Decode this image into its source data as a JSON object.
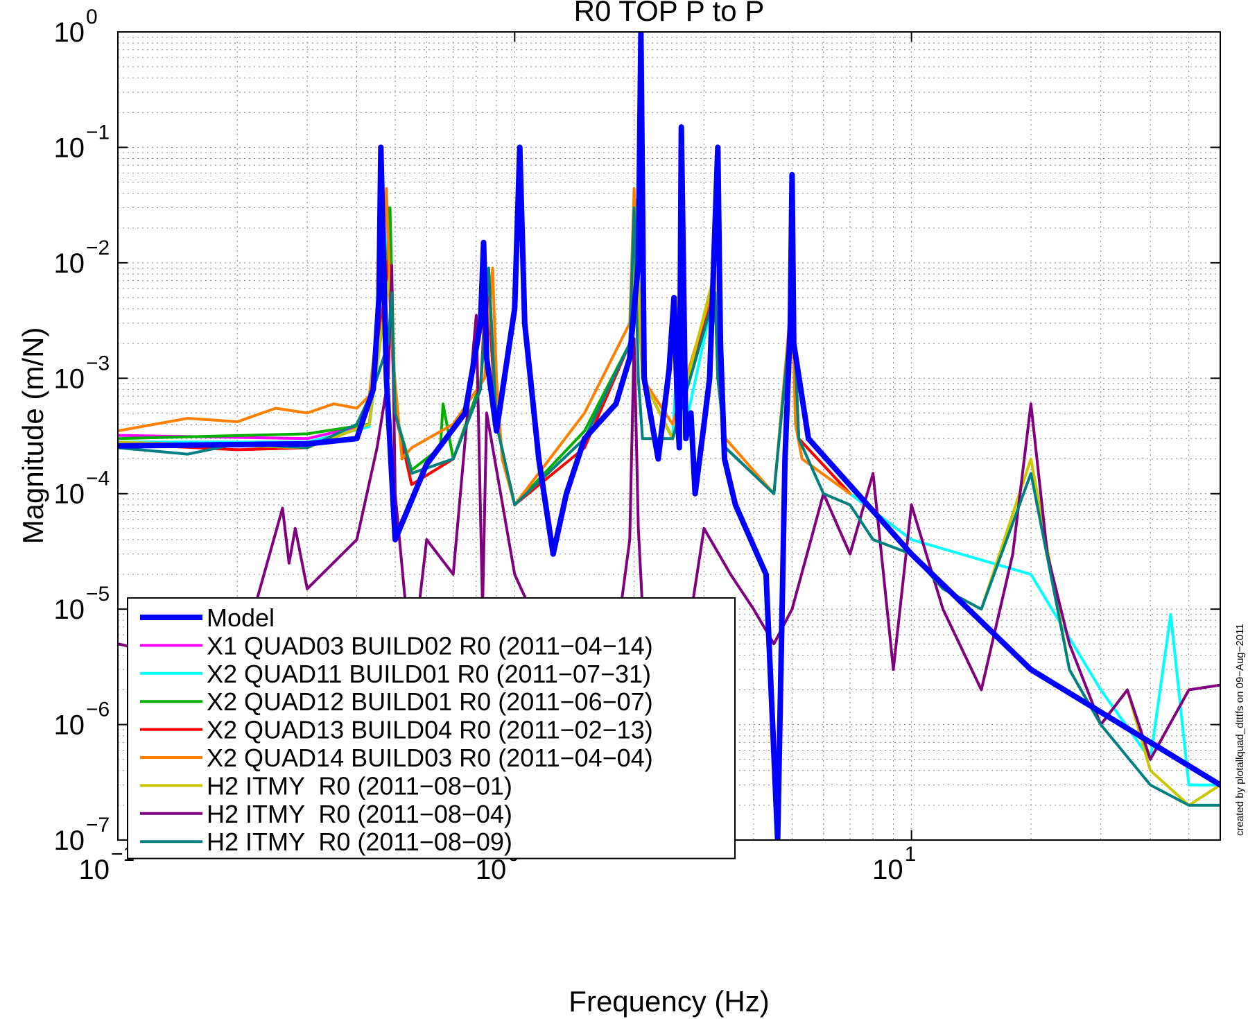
{
  "chart_data": {
    "type": "line",
    "title": "R0 TOP P to P",
    "xlabel": "Frequency (Hz)",
    "ylabel": "Magnitude (m/N)",
    "xscale": "log",
    "yscale": "log",
    "xlim": [
      0.1,
      60
    ],
    "ylim": [
      1e-07,
      1
    ],
    "grid": true,
    "legend_position": "bottom-left",
    "x_ticks": [
      {
        "value": 0.1,
        "base": "10",
        "exp": "−1"
      },
      {
        "value": 1,
        "base": "10",
        "exp": "0"
      },
      {
        "value": 10,
        "base": "10",
        "exp": "1"
      }
    ],
    "y_ticks": [
      {
        "value": 1,
        "base": "10",
        "exp": "0"
      },
      {
        "value": 0.1,
        "base": "10",
        "exp": "−1"
      },
      {
        "value": 0.01,
        "base": "10",
        "exp": "−2"
      },
      {
        "value": 0.001,
        "base": "10",
        "exp": "−3"
      },
      {
        "value": 0.0001,
        "base": "10",
        "exp": "−4"
      },
      {
        "value": 1e-05,
        "base": "10",
        "exp": "−5"
      },
      {
        "value": 1e-06,
        "base": "10",
        "exp": "−6"
      },
      {
        "value": 1e-07,
        "base": "10",
        "exp": "−7"
      }
    ],
    "annotation": "created by plotallquad_dtttfs on 09−Aug−2011",
    "series": [
      {
        "name": "Model",
        "color": "#0000ff",
        "width": 8,
        "x": [
          0.1,
          0.3,
          0.4,
          0.44,
          0.455,
          0.46,
          0.475,
          0.5,
          0.6,
          0.75,
          0.82,
          0.835,
          0.85,
          0.9,
          1.0,
          1.03,
          1.06,
          1.15,
          1.25,
          1.35,
          1.5,
          1.8,
          1.95,
          2.05,
          2.08,
          2.12,
          2.3,
          2.45,
          2.52,
          2.58,
          2.6,
          2.63,
          2.7,
          2.78,
          2.85,
          3.0,
          3.1,
          3.25,
          3.3,
          3.38,
          3.6,
          4.3,
          4.6,
          4.8,
          4.95,
          5.0,
          5.05,
          5.5,
          10,
          20,
          60
        ],
        "y": [
          0.00026,
          0.00027,
          0.0003,
          0.0008,
          0.005,
          0.1,
          0.001,
          4e-05,
          0.00018,
          0.0005,
          0.003,
          0.015,
          0.0015,
          0.00035,
          0.004,
          0.1,
          0.003,
          0.0002,
          3e-05,
          0.0001,
          0.0003,
          0.0006,
          0.0015,
          0.01,
          1.0,
          0.001,
          0.0002,
          0.0012,
          0.005,
          0.0004,
          0.00025,
          0.15,
          0.0003,
          0.0005,
          0.0001,
          0.0004,
          0.001,
          0.1,
          0.002,
          0.0002,
          8e-05,
          2e-05,
          1e-07,
          0.0002,
          0.003,
          0.058,
          0.002,
          0.0003,
          3e-05,
          3e-06,
          3e-07
        ]
      },
      {
        "name": "X1 QUAD03 BUILD02 R0 (2011−04−14)",
        "color": "#ff00ff",
        "width": 4,
        "x": [
          0.1,
          0.3,
          0.43,
          0.47,
          0.48,
          0.5,
          0.55,
          0.7,
          0.82,
          0.86,
          0.9,
          1.0,
          1.5,
          1.95,
          2.02,
          2.1,
          2.5,
          3.2,
          3.25,
          3.4,
          4.5,
          5.02,
          5.2,
          7,
          10
        ],
        "y": [
          0.00032,
          0.0003,
          0.0004,
          0.004,
          0.03,
          0.0005,
          0.00015,
          0.0002,
          0.0008,
          0.009,
          0.0004,
          8e-05,
          0.0003,
          0.002,
          0.03,
          0.001,
          0.0003,
          0.006,
          0.001,
          0.00025,
          0.0001,
          0.005,
          0.0003,
          0.0001,
          4e-05
        ]
      },
      {
        "name": "X2 QUAD11 BUILD01 R0 (2011−07−31)",
        "color": "#00ffff",
        "width": 4,
        "x": [
          0.1,
          0.3,
          0.43,
          0.47,
          0.48,
          0.5,
          0.55,
          0.7,
          0.82,
          0.86,
          0.9,
          1.0,
          1.5,
          1.95,
          2.02,
          2.1,
          2.5,
          2.62,
          2.7,
          3.2,
          3.25,
          3.4,
          4.5,
          5.02,
          5.2,
          7,
          10,
          20,
          30,
          40,
          45,
          50,
          60
        ],
        "y": [
          0.00028,
          0.00028,
          0.00038,
          0.004,
          0.025,
          0.0005,
          0.00015,
          0.0002,
          0.0008,
          0.009,
          0.0004,
          8e-05,
          0.0003,
          0.002,
          0.035,
          0.001,
          0.0003,
          0.0055,
          0.0004,
          0.006,
          0.001,
          0.00025,
          0.0001,
          0.005,
          0.0003,
          0.0001,
          4e-05,
          2e-05,
          2e-06,
          5e-07,
          9e-06,
          3e-07,
          3e-07
        ]
      },
      {
        "name": "X2 QUAD12 BUILD01 R0 (2011−06−07)",
        "color": "#00b000",
        "width": 4,
        "x": [
          0.1,
          0.3,
          0.43,
          0.47,
          0.485,
          0.5,
          0.55,
          0.65,
          0.66,
          0.7,
          0.82,
          0.86,
          0.9,
          1.0,
          1.5,
          1.95,
          2.02,
          2.1,
          2.5,
          3.2,
          3.25,
          3.4,
          4.5,
          5.02,
          5.2,
          7
        ],
        "y": [
          0.0003,
          0.00033,
          0.0004,
          0.004,
          0.03,
          0.0005,
          0.00016,
          0.00025,
          0.0006,
          0.0002,
          0.0009,
          0.008,
          0.0004,
          8e-05,
          0.00035,
          0.002,
          0.03,
          0.001,
          0.0003,
          0.006,
          0.001,
          0.00025,
          0.0001,
          0.005,
          0.0003,
          0.0001
        ]
      },
      {
        "name": "X2 QUAD13 BUILD04 R0 (2011−02−13)",
        "color": "#ff0000",
        "width": 4,
        "x": [
          0.1,
          0.2,
          0.3,
          0.43,
          0.465,
          0.48,
          0.5,
          0.55,
          0.7,
          0.82,
          0.85,
          0.9,
          1.0,
          1.5,
          1.95,
          2.02,
          2.1,
          2.5,
          3.2,
          3.25,
          3.4,
          4.5,
          5.02,
          5.2,
          7
        ],
        "y": [
          0.00027,
          0.00024,
          0.00025,
          0.0004,
          0.004,
          0.0105,
          0.0005,
          0.00012,
          0.0002,
          0.0008,
          0.008,
          0.0004,
          8e-05,
          0.00025,
          0.002,
          0.03,
          0.001,
          0.0003,
          0.006,
          0.001,
          0.00025,
          0.0001,
          0.005,
          0.0003,
          0.0001
        ]
      },
      {
        "name": "X2 QUAD14 BUILD03 R0 (2011−04−04)",
        "color": "#ff8000",
        "width": 4,
        "x": [
          0.1,
          0.15,
          0.2,
          0.25,
          0.3,
          0.35,
          0.4,
          0.43,
          0.46,
          0.475,
          0.49,
          0.52,
          0.55,
          0.7,
          0.84,
          0.88,
          0.9,
          0.93,
          1.0,
          1.5,
          1.95,
          2.0,
          2.05,
          2.1,
          2.5,
          3.2,
          3.25,
          3.4,
          4.5,
          5.0,
          5.1,
          5.3,
          7
        ],
        "y": [
          0.00035,
          0.00045,
          0.00042,
          0.00055,
          0.0005,
          0.0006,
          0.00055,
          0.0007,
          0.005,
          0.044,
          0.002,
          0.0002,
          0.00025,
          0.0004,
          0.001,
          0.009,
          0.001,
          0.0002,
          8e-05,
          0.0005,
          0.003,
          0.044,
          0.005,
          0.001,
          0.0004,
          0.007,
          0.001,
          0.0003,
          0.0001,
          0.0055,
          0.0004,
          0.0002,
          0.0001
        ]
      },
      {
        "name": "H2 ITMY  R0 (2011−08−01)",
        "color": "#c8c800",
        "width": 4,
        "x": [
          0.1,
          0.3,
          0.43,
          0.47,
          0.49,
          0.5,
          0.55,
          0.7,
          0.82,
          0.86,
          0.9,
          1.0,
          1.5,
          1.95,
          2.02,
          2.1,
          2.5,
          3.2,
          3.25,
          3.4,
          4.5,
          5.02,
          5.2,
          6,
          7,
          8,
          10,
          12,
          15,
          20,
          25,
          30,
          35,
          40,
          50,
          60
        ],
        "y": [
          0.00028,
          0.00025,
          0.0004,
          0.004,
          0.009,
          0.0005,
          0.00015,
          0.0002,
          0.0008,
          0.009,
          0.0004,
          8e-05,
          0.0003,
          0.002,
          0.03,
          0.001,
          0.0003,
          0.0085,
          0.001,
          0.00025,
          0.0001,
          0.005,
          0.0003,
          0.0001,
          8e-05,
          4e-05,
          3e-05,
          1.5e-05,
          1e-05,
          0.0002,
          3e-06,
          1e-06,
          2e-06,
          4e-07,
          2e-07,
          3e-07
        ]
      },
      {
        "name": "H2 ITMY  R0 (2011−08−04)",
        "color": "#800080",
        "width": 4,
        "x": [
          0.1,
          0.2,
          0.26,
          0.27,
          0.28,
          0.3,
          0.4,
          0.45,
          0.48,
          0.49,
          0.5,
          0.55,
          0.6,
          0.7,
          0.8,
          0.83,
          0.85,
          1.0,
          1.2,
          1.5,
          1.8,
          1.95,
          2.0,
          2.05,
          2.1,
          2.3,
          2.5,
          2.6,
          3.0,
          3.5,
          4.0,
          4.5,
          5.0,
          6,
          7,
          8,
          9,
          10,
          12,
          15,
          18,
          20,
          22,
          25,
          30,
          35,
          40,
          50,
          60
        ],
        "y": [
          5e-06,
          3e-06,
          7.5e-05,
          2.5e-05,
          5e-05,
          1.5e-05,
          4e-05,
          0.00025,
          0.001,
          0.0095,
          0.0001,
          3e-06,
          4e-05,
          2e-05,
          0.0035,
          1e-05,
          0.0005,
          2e-05,
          5e-06,
          3e-06,
          5e-06,
          4e-05,
          0.0022,
          5e-05,
          1e-05,
          5e-06,
          4e-06,
          2e-06,
          5e-05,
          2e-05,
          1e-05,
          5e-06,
          1e-05,
          0.0001,
          3e-05,
          0.00015,
          3e-06,
          8e-05,
          1e-05,
          2e-06,
          3e-05,
          0.0006,
          3e-05,
          5e-06,
          1e-06,
          2e-06,
          5e-07,
          2e-06,
          2.2e-06
        ]
      },
      {
        "name": "H2 ITMY  R0 (2011−08−09)",
        "color": "#008080",
        "width": 4,
        "x": [
          0.1,
          0.15,
          0.2,
          0.3,
          0.4,
          0.44,
          0.48,
          0.49,
          0.5,
          0.55,
          0.7,
          0.82,
          0.86,
          0.9,
          1.0,
          1.5,
          1.95,
          2.0,
          2.05,
          2.1,
          2.5,
          3.2,
          3.25,
          3.4,
          4.5,
          5.02,
          5.2,
          6,
          7,
          8,
          10,
          12,
          15,
          20,
          25,
          30,
          40,
          50,
          60
        ],
        "y": [
          0.00025,
          0.00022,
          0.00027,
          0.00025,
          0.0004,
          0.0008,
          0.002,
          0.0055,
          0.0005,
          0.00015,
          0.0002,
          0.0008,
          0.009,
          0.0004,
          8e-05,
          0.0003,
          0.002,
          0.03,
          0.001,
          0.0003,
          0.0003,
          0.0055,
          0.001,
          0.00025,
          0.0001,
          0.005,
          0.0003,
          0.0001,
          8e-05,
          4e-05,
          3e-05,
          1.5e-05,
          1e-05,
          0.00015,
          3e-06,
          1e-06,
          3e-07,
          2e-07,
          2e-07
        ]
      }
    ]
  }
}
